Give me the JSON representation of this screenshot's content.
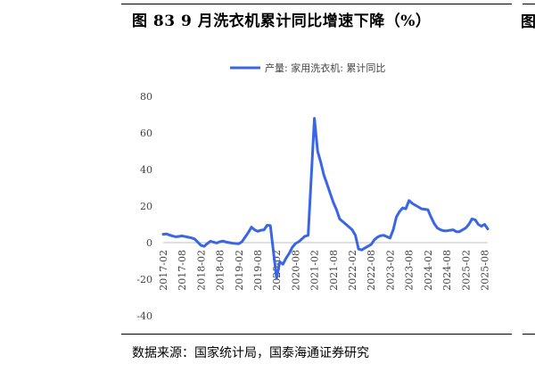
{
  "figure": {
    "title": "图 83 9 月洗衣机累计同比增速下降（%）",
    "source": "数据来源：国家统计局，国泰海通证券研究",
    "right_edge_glyph": "图"
  },
  "chart_data": {
    "type": "line",
    "title": "",
    "xlabel": "",
    "ylabel": "",
    "ylim": [
      -40,
      80
    ],
    "yticks": [
      -40,
      -20,
      0,
      20,
      40,
      60,
      80
    ],
    "xticks": [
      "2017-02",
      "2017-08",
      "2018-02",
      "2018-08",
      "2019-02",
      "2019-08",
      "2020-02",
      "2020-08",
      "2021-02",
      "2021-08",
      "2022-02",
      "2022-08",
      "2023-02",
      "2023-08",
      "2024-02",
      "2024-08",
      "2025-02",
      "2025-08"
    ],
    "legend_position": "top",
    "series": [
      {
        "name": "产量: 家用洗衣机: 累计同比",
        "color": "#3a66e6",
        "points": [
          [
            "2017-02",
            4.6
          ],
          [
            "2017-03",
            4.8
          ],
          [
            "2017-04",
            4.2
          ],
          [
            "2017-05",
            3.6
          ],
          [
            "2017-06",
            3.2
          ],
          [
            "2017-07",
            3.4
          ],
          [
            "2017-08",
            3.7
          ],
          [
            "2017-09",
            3.3
          ],
          [
            "2017-10",
            3.0
          ],
          [
            "2017-11",
            2.6
          ],
          [
            "2017-12",
            2.0
          ],
          [
            "2018-02",
            -1.5
          ],
          [
            "2018-03",
            -2.0
          ],
          [
            "2018-04",
            -0.5
          ],
          [
            "2018-05",
            0.8
          ],
          [
            "2018-06",
            0.3
          ],
          [
            "2018-07",
            -0.2
          ],
          [
            "2018-08",
            0.5
          ],
          [
            "2018-09",
            0.9
          ],
          [
            "2018-10",
            0.3
          ],
          [
            "2018-11",
            0.0
          ],
          [
            "2018-12",
            -0.3
          ],
          [
            "2019-02",
            -0.6
          ],
          [
            "2019-03",
            0.5
          ],
          [
            "2019-04",
            3.0
          ],
          [
            "2019-05",
            5.5
          ],
          [
            "2019-06",
            8.5
          ],
          [
            "2019-07",
            7.0
          ],
          [
            "2019-08",
            6.2
          ],
          [
            "2019-09",
            6.8
          ],
          [
            "2019-10",
            7.0
          ],
          [
            "2019-11",
            9.5
          ],
          [
            "2019-12",
            9.3
          ],
          [
            "2020-02",
            -19.5
          ],
          [
            "2020-03",
            -10.5
          ],
          [
            "2020-04",
            -11.8
          ],
          [
            "2020-05",
            -8.5
          ],
          [
            "2020-06",
            -5.8
          ],
          [
            "2020-07",
            -2.5
          ],
          [
            "2020-08",
            -0.5
          ],
          [
            "2020-09",
            0.5
          ],
          [
            "2020-10",
            2.0
          ],
          [
            "2020-11",
            3.5
          ],
          [
            "2020-12",
            4.0
          ],
          [
            "2021-02",
            68.0
          ],
          [
            "2021-03",
            50.0
          ],
          [
            "2021-04",
            44.0
          ],
          [
            "2021-05",
            37.0
          ],
          [
            "2021-06",
            32.0
          ],
          [
            "2021-07",
            27.0
          ],
          [
            "2021-08",
            22.0
          ],
          [
            "2021-09",
            18.0
          ],
          [
            "2021-10",
            13.0
          ],
          [
            "2021-11",
            11.5
          ],
          [
            "2021-12",
            10.0
          ],
          [
            "2022-02",
            7.0
          ],
          [
            "2022-03",
            4.0
          ],
          [
            "2022-04",
            -3.5
          ],
          [
            "2022-05",
            -4.0
          ],
          [
            "2022-06",
            -3.0
          ],
          [
            "2022-07",
            -2.0
          ],
          [
            "2022-08",
            -1.0
          ],
          [
            "2022-09",
            1.5
          ],
          [
            "2022-10",
            3.0
          ],
          [
            "2022-11",
            3.8
          ],
          [
            "2022-12",
            4.0
          ],
          [
            "2023-02",
            2.5
          ],
          [
            "2023-03",
            7.0
          ],
          [
            "2023-04",
            14.0
          ],
          [
            "2023-05",
            17.0
          ],
          [
            "2023-06",
            19.0
          ],
          [
            "2023-07",
            18.5
          ],
          [
            "2023-08",
            23.0
          ],
          [
            "2023-09",
            21.5
          ],
          [
            "2023-10",
            20.5
          ],
          [
            "2023-11",
            19.5
          ],
          [
            "2023-12",
            18.5
          ],
          [
            "2024-02",
            18.0
          ],
          [
            "2024-03",
            14.0
          ],
          [
            "2024-04",
            10.5
          ],
          [
            "2024-05",
            8.0
          ],
          [
            "2024-06",
            7.0
          ],
          [
            "2024-07",
            6.5
          ],
          [
            "2024-08",
            6.5
          ],
          [
            "2024-09",
            6.8
          ],
          [
            "2024-10",
            7.0
          ],
          [
            "2024-11",
            6.0
          ],
          [
            "2024-12",
            6.0
          ],
          [
            "2025-02",
            8.0
          ],
          [
            "2025-03",
            10.0
          ],
          [
            "2025-04",
            13.0
          ],
          [
            "2025-05",
            12.5
          ],
          [
            "2025-06",
            10.0
          ],
          [
            "2025-07",
            9.0
          ],
          [
            "2025-08",
            10.0
          ],
          [
            "2025-09",
            7.5
          ]
        ]
      }
    ]
  }
}
